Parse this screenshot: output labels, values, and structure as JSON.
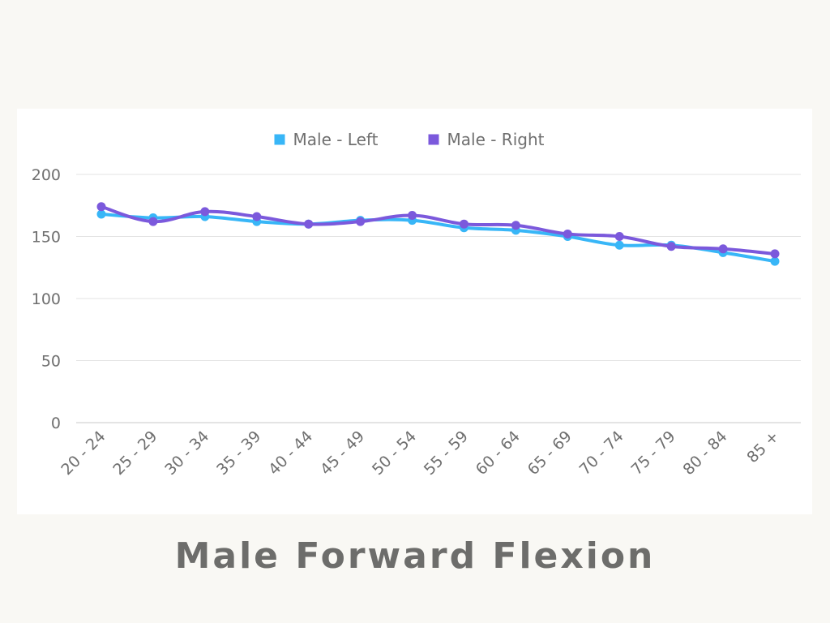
{
  "caption": "Male Forward Flexion",
  "chart_data": {
    "type": "line",
    "categories": [
      "20 - 24",
      "25 - 29",
      "30 - 34",
      "35 - 39",
      "40 - 44",
      "45 - 49",
      "50 - 54",
      "55 - 59",
      "60 - 64",
      "65 - 69",
      "70 - 74",
      "75 - 79",
      "80 - 84",
      "85 +"
    ],
    "series": [
      {
        "name": "Male - Left",
        "color": "#38b6f7",
        "values": [
          168,
          165,
          166,
          162,
          160,
          163,
          163,
          157,
          155,
          150,
          143,
          143,
          137,
          130
        ]
      },
      {
        "name": "Male - Right",
        "color": "#7b59dc",
        "values": [
          174,
          162,
          170,
          166,
          160,
          162,
          167,
          160,
          159,
          152,
          150,
          142,
          140,
          136
        ]
      }
    ],
    "yticks": [
      "0",
      "50",
      "100",
      "150",
      "200"
    ],
    "ylim": [
      0,
      200
    ],
    "grid": true,
    "legend": "top-center",
    "title": "",
    "xlabel": "",
    "ylabel": ""
  }
}
